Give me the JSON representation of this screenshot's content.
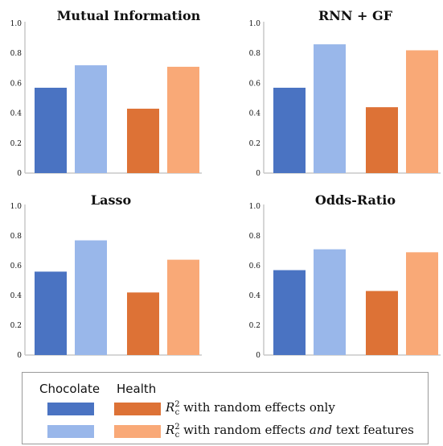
{
  "colors": {
    "chocolate_random": "#4a73c2",
    "chocolate_text": "#99b7ea",
    "health_random": "#dd7236",
    "health_text": "#f9a977",
    "axis": "#c8c8c8",
    "text": "#111111"
  },
  "chart_data": [
    {
      "type": "bar",
      "title": "Mutual Information",
      "categories": [
        "Chocolate",
        "Health"
      ],
      "series": [
        {
          "name": "R_c^2 with random effects only",
          "values": [
            0.57,
            0.43
          ]
        },
        {
          "name": "R_c^2 with random effects and text features",
          "values": [
            0.72,
            0.71
          ]
        }
      ],
      "yticks": [
        "0",
        "0.2",
        "0.4",
        "0.6",
        "0.8",
        "1.0"
      ],
      "ylim": [
        0,
        1.0
      ]
    },
    {
      "type": "bar",
      "title": "RNN + GF",
      "categories": [
        "Chocolate",
        "Health"
      ],
      "series": [
        {
          "name": "R_c^2 with random effects only",
          "values": [
            0.57,
            0.44
          ]
        },
        {
          "name": "R_c^2 with random effects and text features",
          "values": [
            0.86,
            0.82
          ]
        }
      ],
      "yticks": [
        "0",
        "0.2",
        "0.4",
        "0.6",
        "0.8",
        "1.0"
      ],
      "ylim": [
        0,
        1.0
      ]
    },
    {
      "type": "bar",
      "title": "Lasso",
      "categories": [
        "Chocolate",
        "Health"
      ],
      "series": [
        {
          "name": "R_c^2 with random effects only",
          "values": [
            0.56,
            0.42
          ]
        },
        {
          "name": "R_c^2 with random effects and text features",
          "values": [
            0.77,
            0.64
          ]
        }
      ],
      "yticks": [
        "0",
        "0.2",
        "0.4",
        "0.6",
        "0.8",
        "1.0"
      ],
      "ylim": [
        0,
        1.0
      ]
    },
    {
      "type": "bar",
      "title": "Odds-Ratio",
      "categories": [
        "Chocolate",
        "Health"
      ],
      "series": [
        {
          "name": "R_c^2 with random effects only",
          "values": [
            0.57,
            0.43
          ]
        },
        {
          "name": "R_c^2 with random effects and text features",
          "values": [
            0.71,
            0.69
          ]
        }
      ],
      "yticks": [
        "0",
        "0.2",
        "0.4",
        "0.6",
        "0.8",
        "1.0"
      ],
      "ylim": [
        0,
        1.0
      ]
    }
  ],
  "legend": {
    "chocolate_label": "Chocolate",
    "health_label": "Health",
    "r_symbol": "R",
    "r_sub": "c",
    "r_sup": "2",
    "row1_text": "with random effects only",
    "row2_prefix": "with random effects",
    "row2_emph": "and",
    "row2_suffix": "text features"
  }
}
